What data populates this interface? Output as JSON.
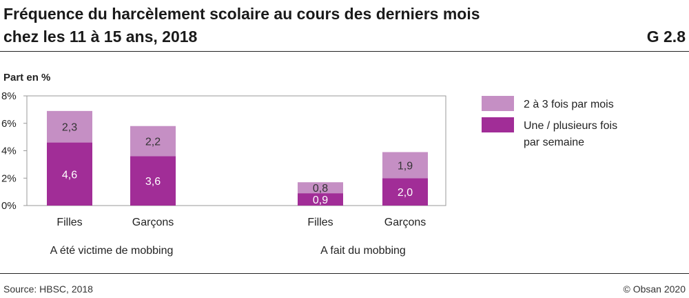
{
  "header": {
    "title_line1": "Fréquence du harcèlement scolaire au cours des derniers mois",
    "title_line2": "chez les 11 à 15 ans, 2018",
    "figure_number": "G 2.8"
  },
  "footer": {
    "source": "Source: HBSC, 2018",
    "copyright": "© Obsan 2020"
  },
  "colors": {
    "light": "#C58FC4",
    "dark": "#A12D97",
    "frame": "#999999"
  },
  "chart_data": {
    "type": "bar",
    "stacked": true,
    "ylabel": "Part en %",
    "ylim": [
      0,
      8
    ],
    "yticks": [
      "0%",
      "2%",
      "4%",
      "6%",
      "8%"
    ],
    "grid": false,
    "legend_position": "right",
    "groups": [
      "A été victime de mobbing",
      "A fait du mobbing"
    ],
    "categories": [
      "Filles",
      "Garçons",
      "Filles",
      "Garçons"
    ],
    "series": [
      {
        "name": "Une / plusieurs fois par semaine",
        "values": [
          4.6,
          3.6,
          0.9,
          2.0
        ],
        "labels": [
          "4,6",
          "3,6",
          "0,9",
          "2,0"
        ]
      },
      {
        "name": "2 à 3 fois par mois",
        "values": [
          2.3,
          2.2,
          0.8,
          1.9
        ],
        "labels": [
          "2,3",
          "2,2",
          "0,8",
          "1,9"
        ]
      }
    ],
    "legend": [
      {
        "line1": "2 à 3 fois par mois",
        "line2": ""
      },
      {
        "line1": "Une / plusieurs fois",
        "line2": "par semaine"
      }
    ]
  }
}
